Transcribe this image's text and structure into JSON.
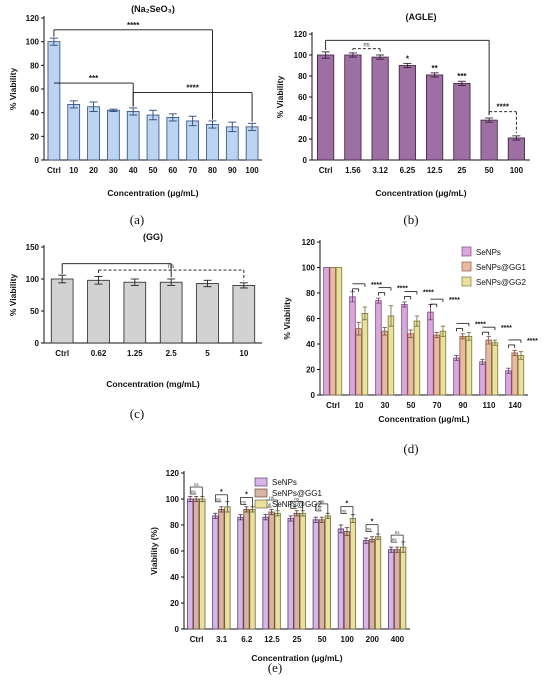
{
  "chart_data": [
    {
      "id": "a",
      "type": "bar",
      "panel_label": "(a)",
      "title": "(Na₂SeO₃)",
      "xlabel": "Concentration (μg/mL)",
      "ylabel": "% Viability",
      "ylim": [
        0,
        120
      ],
      "yticks": [
        0,
        20,
        40,
        60,
        80,
        100,
        120
      ],
      "categories": [
        "Ctrl",
        "10",
        "20",
        "30",
        "40",
        "50",
        "60",
        "70",
        "80",
        "90",
        "100"
      ],
      "series": [
        {
          "color": "#bcd4f2",
          "stroke": "#2c4a78",
          "values": [
            100,
            47,
            45,
            42,
            41,
            38,
            36,
            33,
            30,
            28,
            28
          ],
          "errors": [
            3,
            3,
            4,
            1,
            3,
            4,
            3,
            4,
            3,
            4,
            3
          ]
        }
      ],
      "annotations": [
        {
          "from": 0,
          "to": 4,
          "label": "***",
          "y": 65,
          "style": "solid"
        },
        {
          "from": 0,
          "to": 8,
          "label": "****",
          "y": 110,
          "style": "solid"
        },
        {
          "from": 4,
          "to": 10,
          "label": "****",
          "y": 57,
          "style": "solid"
        }
      ]
    },
    {
      "id": "b",
      "type": "bar",
      "panel_label": "(b)",
      "title": "(AGLE)",
      "xlabel": "Concentration (μg/mL)",
      "ylabel": "% Viability",
      "ylim": [
        0,
        120
      ],
      "yticks": [
        0,
        20,
        40,
        60,
        80,
        100,
        120
      ],
      "categories": [
        "Ctrl",
        "1.56",
        "3.12",
        "6.25",
        "12.5",
        "25",
        "50",
        "100"
      ],
      "series": [
        {
          "color": "#9e6fa2",
          "stroke": "#3a1f3d",
          "values": [
            100,
            100,
            98,
            90,
            81,
            73,
            38,
            21
          ],
          "errors": [
            3,
            2,
            2,
            2,
            2,
            2,
            2,
            2
          ]
        }
      ],
      "annotations": [
        {
          "from": 0,
          "to": 6,
          "label": "",
          "y": 114,
          "style": "solid"
        },
        {
          "from": 1,
          "to": 2,
          "label": "ns",
          "y": 106,
          "style": "dashed"
        },
        {
          "at": 3,
          "label": "*",
          "y": 94
        },
        {
          "at": 4,
          "label": "**",
          "y": 85
        },
        {
          "at": 5,
          "label": "***",
          "y": 77
        },
        {
          "from": 6,
          "to": 7,
          "label": "****",
          "y": 46,
          "style": "dashed"
        }
      ]
    },
    {
      "id": "c",
      "type": "bar",
      "panel_label": "(c)",
      "title": "(GG)",
      "xlabel": "Concentration (mg/mL)",
      "ylabel": "% Viability",
      "ylim": [
        0,
        150
      ],
      "yticks": [
        0,
        50,
        100,
        150
      ],
      "categories": [
        "Ctrl",
        "0.62",
        "1.25",
        "2.5",
        "5",
        "10"
      ],
      "series": [
        {
          "color": "#d2d2d2",
          "stroke": "#222222",
          "values": [
            100,
            98,
            95,
            95,
            93,
            90
          ],
          "errors": [
            6,
            6,
            5,
            5,
            5,
            4
          ]
        }
      ],
      "annotations": [
        {
          "from": 0,
          "to": 3,
          "label": "",
          "y": 124,
          "style": "solid"
        },
        {
          "from": 1,
          "to": 5,
          "label": "ns",
          "y": 114,
          "style": "dashed"
        }
      ]
    },
    {
      "id": "d",
      "type": "bar",
      "panel_label": "(d)",
      "title": "",
      "xlabel": "Concentration (μg/mL)",
      "ylabel": "% Viability",
      "ylim": [
        0,
        120
      ],
      "yticks": [
        0,
        20,
        40,
        60,
        80,
        100,
        120
      ],
      "categories": [
        "Ctrl",
        "10",
        "30",
        "50",
        "70",
        "90",
        "110",
        "140"
      ],
      "legend_position": "top-right",
      "series": [
        {
          "name": "SeNPs",
          "color": "#d9a7dc",
          "stroke": "#7a4a7e",
          "values": [
            100,
            77,
            74,
            71,
            65,
            29,
            26,
            19
          ],
          "errors": [
            0,
            4,
            2,
            2,
            6,
            2,
            2,
            2
          ]
        },
        {
          "name": "SeNPs@GG1",
          "color": "#e9b9a0",
          "stroke": "#8a5a44",
          "values": [
            100,
            52,
            50,
            48,
            47,
            46,
            43,
            33
          ],
          "errors": [
            0,
            5,
            3,
            3,
            2,
            2,
            3,
            2
          ]
        },
        {
          "name": "SeNPs@GG2",
          "color": "#e8e29c",
          "stroke": "#7c7640",
          "values": [
            100,
            64,
            62,
            58,
            50,
            46,
            41,
            31
          ],
          "errors": [
            0,
            5,
            8,
            4,
            4,
            3,
            2,
            3
          ]
        }
      ],
      "annotations": [
        {
          "group": 1,
          "label": "****"
        },
        {
          "group": 2,
          "label": "****"
        },
        {
          "group": 3,
          "label": "****"
        },
        {
          "group": 4,
          "label": "****"
        },
        {
          "group": 5,
          "label": "****"
        },
        {
          "group": 6,
          "label": "****"
        },
        {
          "group": 7,
          "label": "****"
        }
      ]
    },
    {
      "id": "e",
      "type": "bar",
      "panel_label": "(e)",
      "title": "",
      "xlabel": "Concentration (μg/mL)",
      "ylabel": "Viability (%)",
      "ylim": [
        0,
        120
      ],
      "yticks": [
        0,
        20,
        40,
        60,
        80,
        100,
        120
      ],
      "categories": [
        "Ctrl",
        "3.1",
        "6.2",
        "12.5",
        "25",
        "50",
        "100",
        "200",
        "400"
      ],
      "legend_position": "top-center",
      "series": [
        {
          "name": "SeNPs",
          "color": "#d6b6e6",
          "stroke": "#5b3c6b",
          "values": [
            100,
            87,
            86,
            86,
            85,
            84,
            77,
            68,
            61
          ],
          "errors": [
            2,
            2,
            2,
            2,
            2,
            2,
            3,
            2,
            2
          ]
        },
        {
          "name": "SeNPs@GG1",
          "color": "#d9b3a2",
          "stroke": "#6b4a3c",
          "values": [
            100,
            92,
            92,
            90,
            89,
            84,
            75,
            69,
            61
          ],
          "errors": [
            2,
            2,
            2,
            2,
            2,
            2,
            3,
            2,
            2
          ]
        },
        {
          "name": "SeNPs@GG2",
          "color": "#ebe19d",
          "stroke": "#6b6640",
          "values": [
            100,
            94,
            92,
            89,
            89,
            87,
            85,
            71,
            63
          ],
          "errors": [
            2,
            4,
            2,
            2,
            2,
            2,
            3,
            2,
            4
          ]
        }
      ],
      "annotations": [
        {
          "group": 0,
          "top": "ns",
          "bottom": "ns"
        },
        {
          "group": 1,
          "top": "*",
          "bottom": "ns"
        },
        {
          "group": 2,
          "top": "*",
          "bottom": "ns"
        },
        {
          "group": 3,
          "top": "ns",
          "bottom": "ns"
        },
        {
          "group": 4,
          "top": "ns",
          "bottom": "ns"
        },
        {
          "group": 5,
          "top": "ns",
          "bottom": "ns"
        },
        {
          "group": 6,
          "top": "*",
          "bottom": "ns"
        },
        {
          "group": 7,
          "top": "*",
          "bottom": "ns"
        },
        {
          "group": 8,
          "top": "ns",
          "bottom": "ns"
        }
      ]
    }
  ]
}
